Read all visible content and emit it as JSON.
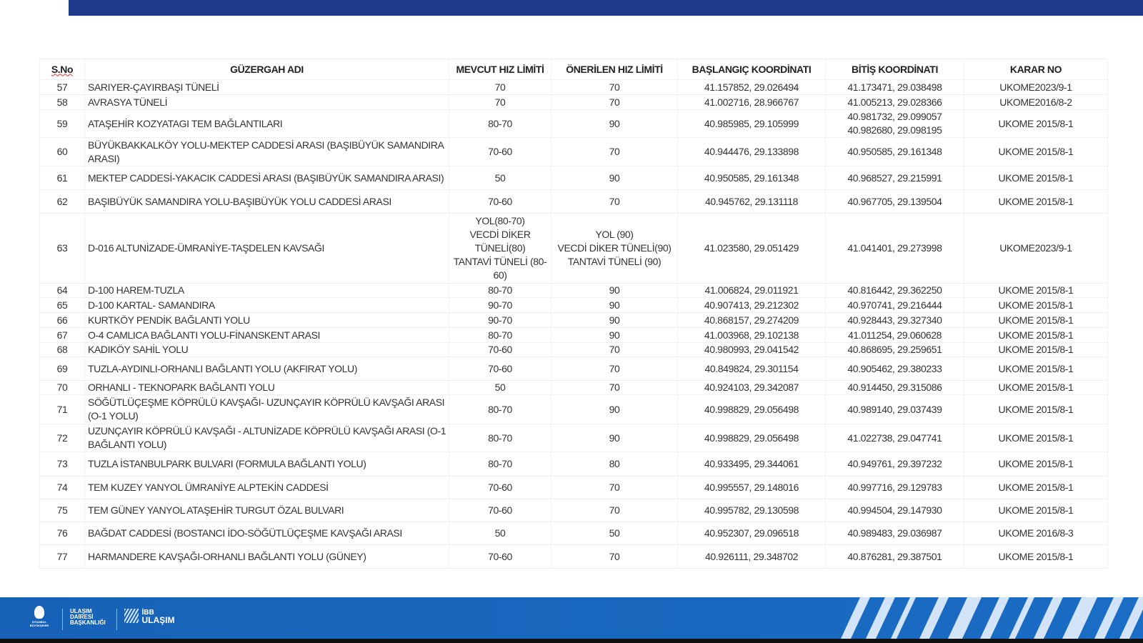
{
  "table": {
    "headers": [
      "S.No",
      "GÜZERGAH ADI",
      "MEVCUT HIZ LİMİTİ",
      "ÖNERİLEN HIZ LİMİTİ",
      "BAŞLANGIÇ KOORDİNATI",
      "BİTİŞ KOORDİNATI",
      "KARAR NO"
    ],
    "rows": [
      [
        "57",
        "SARIYER-ÇAYIRBAŞI TÜNELİ",
        "70",
        "70",
        "41.157852, 29.026494",
        "41.173471, 29.038498",
        "UKOME2023/9-1"
      ],
      [
        "58",
        "AVRASYA TÜNELİ",
        "70",
        "70",
        "41.002716, 28.966767",
        "41.005213, 29.028366",
        "UKOME2016/8-2"
      ],
      [
        "59",
        "ATAŞEHİR KOZYATAGI TEM BAĞLANTILARI",
        "80-70",
        "90",
        "40.985985, 29.105999",
        "40.981732, 29.099057\n40.982680, 29.098195",
        "UKOME 2015/8-1"
      ],
      [
        "60",
        "BÜYÜKBAKKALKÖY YOLU-MEKTEP CADDESİ ARASI (BAŞIBÜYÜK SAMANDIRA ARASI)",
        "70-60",
        "70",
        "40.944476, 29.133898",
        "40.950585, 29.161348",
        "UKOME 2015/8-1"
      ],
      [
        "61",
        "MEKTEP CADDESİ-YAKACIK CADDESİ ARASI (BAŞIBÜYÜK SAMANDIRA ARASI)",
        "50",
        "90",
        "40.950585, 29.161348",
        "40.968527, 29.215991",
        "UKOME 2015/8-1"
      ],
      [
        "62",
        "BAŞIBÜYÜK SAMANDIRA YOLU-BAŞIBÜYÜK YOLU CADDESİ ARASI",
        "70-60",
        "70",
        "40.945762, 29.131118",
        "40.967705, 29.139504",
        "UKOME 2015/8-1"
      ],
      [
        "63",
        "D-016 ALTUNİZADE-ÜMRANİYE-TAŞDELEN KAVSAĞI",
        "YOL(80-70)\nVECDİ DİKER TÜNELİ(80)\nTANTAVİ TÜNELİ (80-60)",
        "YOL (90)\nVECDİ DİKER TÜNELİ(90)\nTANTAVİ TÜNELİ (90)",
        "41.023580, 29.051429",
        "41.041401, 29.273998",
        "UKOME2023/9-1"
      ],
      [
        "64",
        "D-100 HAREM-TUZLA",
        "80-70",
        "90",
        "41.006824, 29.011921",
        "40.816442, 29.362250",
        "UKOME 2015/8-1"
      ],
      [
        "65",
        "D-100 KARTAL- SAMANDIRA",
        "90-70",
        "90",
        "40.907413, 29.212302",
        "40.970741, 29.216444",
        "UKOME 2015/8-1"
      ],
      [
        "66",
        "KURTKÖY PENDİK BAĞLANTI YOLU",
        "90-70",
        "90",
        "40.868157, 29.274209",
        "40.928443, 29.327340",
        "UKOME 2015/8-1"
      ],
      [
        "67",
        "O-4 CAMLICA BAĞLANTI YOLU-FİNANSKENT ARASI",
        "80-70",
        "90",
        "41.003968, 29.102138",
        "41.011254, 29.060628",
        "UKOME 2015/8-1"
      ],
      [
        "68",
        "KADIKÖY SAHİL YOLU",
        "70-60",
        "70",
        "40.980993, 29.041542",
        "40.868695, 29.259651",
        "UKOME 2015/8-1"
      ],
      [
        "69",
        "TUZLA-AYDINLI-ORHANLI BAĞLANTI YOLU (AKFIRAT YOLU)",
        "70-60",
        "70",
        "40.849824, 29.301154",
        "40.905462, 29.380233",
        "UKOME 2015/8-1"
      ],
      [
        "70",
        "ORHANLI - TEKNOPARK BAĞLANTI YOLU",
        "50",
        "70",
        "40.924103, 29.342087",
        "40.914450, 29.315086",
        "UKOME 2015/8-1"
      ],
      [
        "71",
        "SÖĞÜTLÜÇEŞME KÖPRÜLÜ KAVŞAĞI- UZUNÇAYIR KÖPRÜLÜ KAVŞAĞI ARASI (O-1 YOLU)",
        "80-70",
        "90",
        "40.998829, 29.056498",
        "40.989140, 29.037439",
        "UKOME 2015/8-1"
      ],
      [
        "72",
        "UZUNÇAYIR KÖPRÜLÜ KAVŞAĞI  - ALTUNİZADE KÖPRÜLÜ KAVŞAĞI ARASI (O-1 BAĞLANTI YOLU)",
        "80-70",
        "90",
        "40.998829, 29.056498",
        "41.022738, 29.047741",
        "UKOME 2015/8-1"
      ],
      [
        "73",
        "TUZLA İSTANBULPARK BULVARI (FORMULA BAĞLANTI YOLU)",
        "80-70",
        "80",
        "40.933495, 29.344061",
        "40.949761, 29.397232",
        "UKOME 2015/8-1"
      ],
      [
        "74",
        "TEM KUZEY YANYOL ÜMRANİYE ALPTEKİN CADDESİ",
        "70-60",
        "70",
        "40.995557, 29.148016",
        "40.997716, 29.129783",
        "UKOME 2015/8-1"
      ],
      [
        "75",
        "TEM GÜNEY YANYOL ATAŞEHİR TURGUT ÖZAL BULVARI",
        "70-60",
        "70",
        "40.995782, 29.130598",
        "40.994504, 29.147930",
        "UKOME 2015/8-1"
      ],
      [
        "76",
        "BAĞDAT CADDESİ (BOSTANCI İDO-SÖĞÜTLÜÇEŞME KAVŞAĞI ARASI",
        "50",
        "50",
        "40.952307, 29.096518",
        "40.989483, 29.036987",
        "UKOME 2016/8-3"
      ],
      [
        "77",
        "HARMANDERE KAVŞAĞI-ORHANLI BAĞLANTI YOLU (GÜNEY)",
        "70-60",
        "70",
        "40.926111, 29.348702",
        "40.876281, 29.387501",
        "UKOME 2015/8-1"
      ]
    ]
  },
  "footer": {
    "logo1": "İSTANBUL BÜYÜKŞEHİR",
    "logo2": "ULAŞIM DAİRESİ BAŞKANLIĞI",
    "logo3_line1": "İBB",
    "logo3_line2": "ULAŞIM"
  },
  "colors": {
    "topbar": "#1f3b8c",
    "footer": "#1762b7"
  }
}
